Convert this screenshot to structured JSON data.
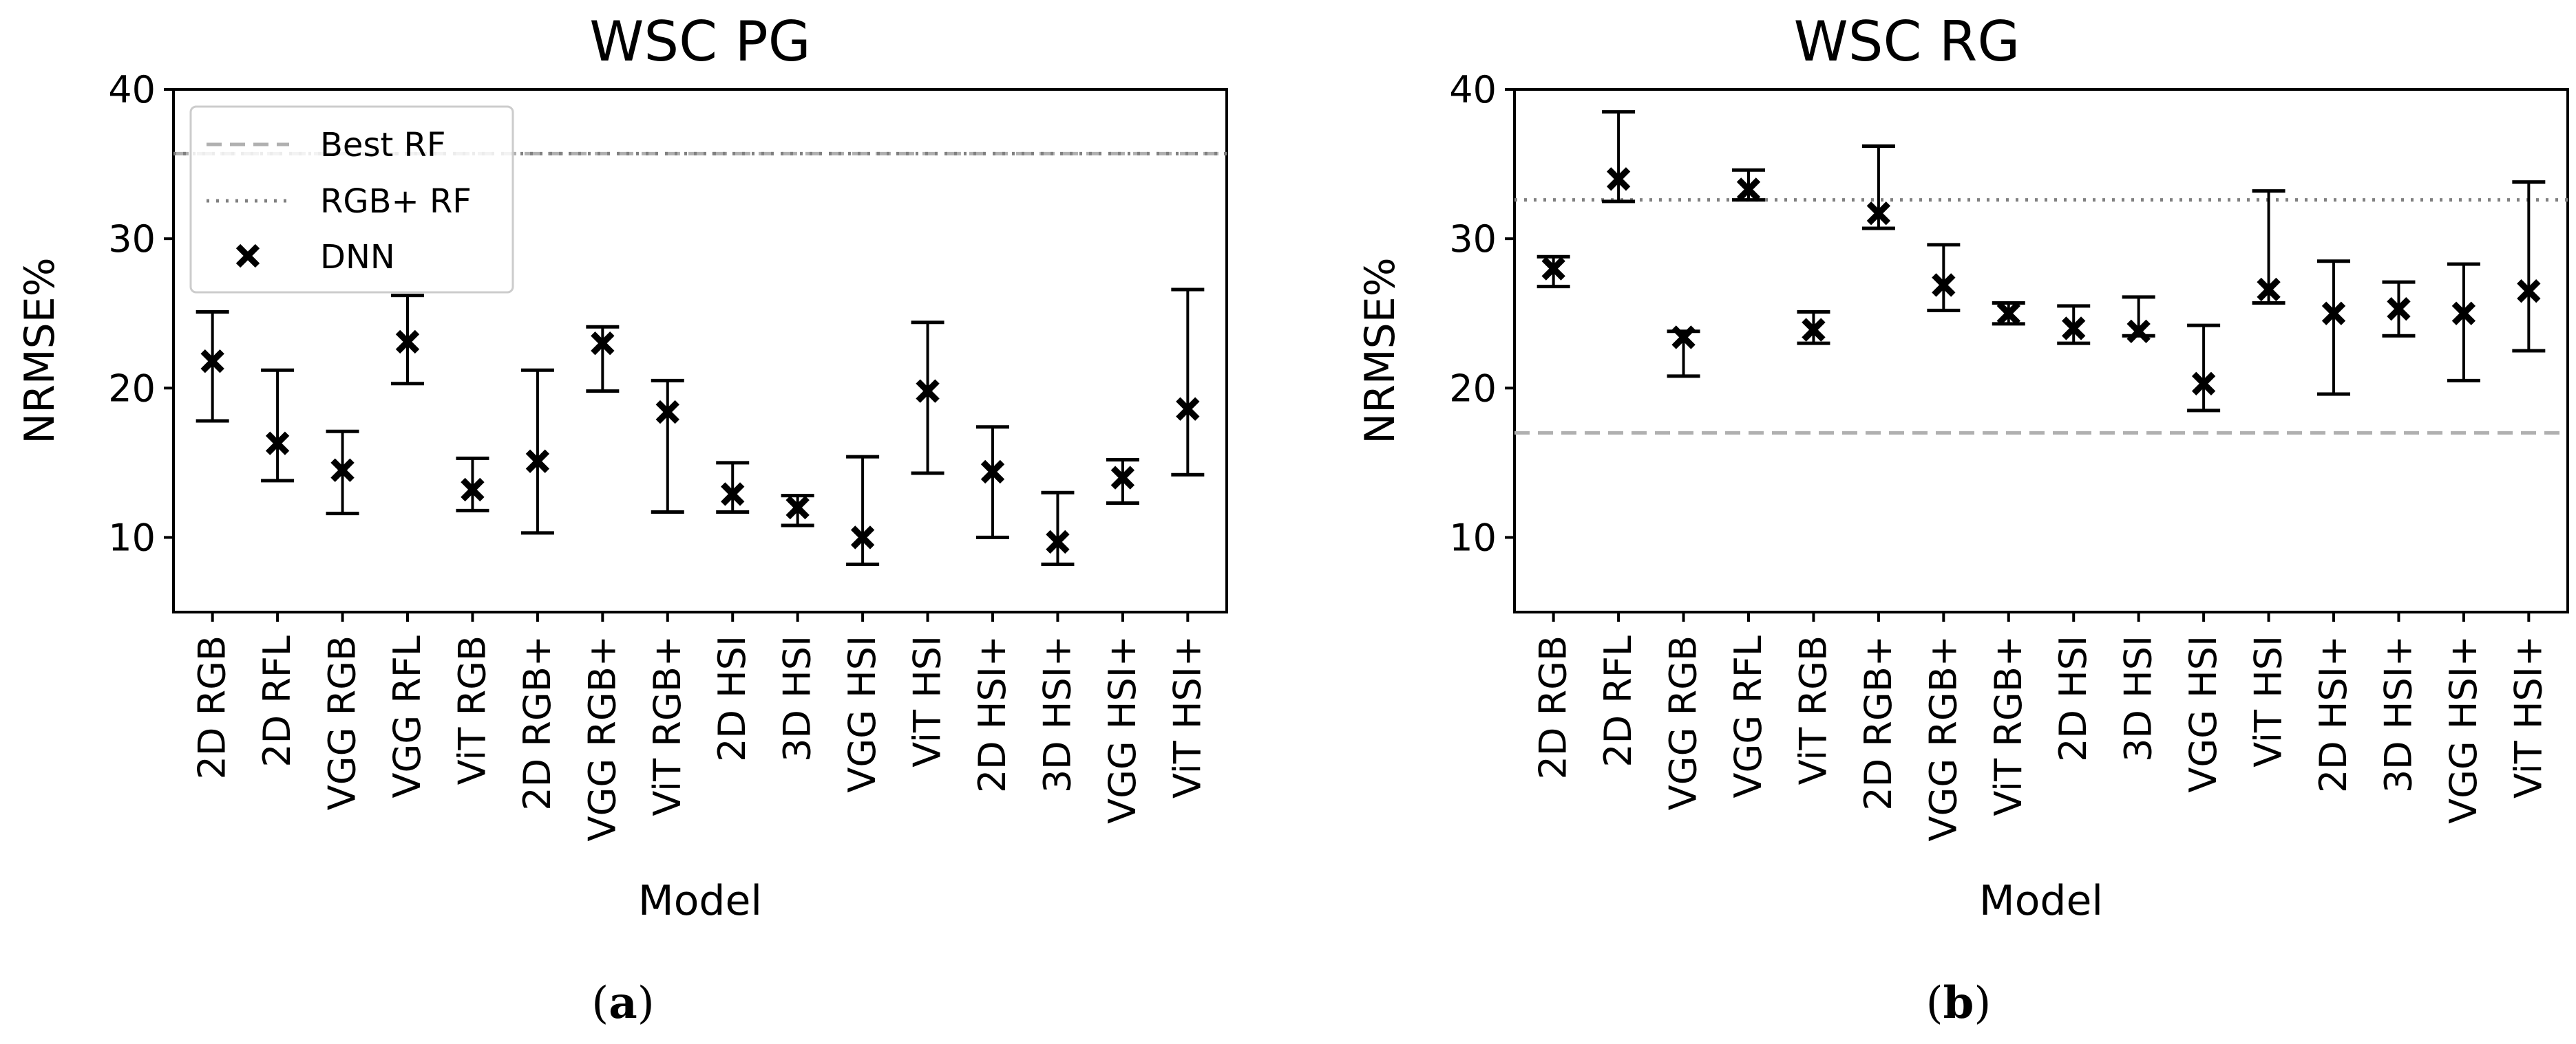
{
  "chart_data": [
    {
      "type": "scatter",
      "panel_label": "a",
      "title": "WSC PG",
      "xlabel": "Model",
      "ylabel": "NRMSE%",
      "ylim": [
        5,
        40
      ],
      "yticks": [
        10,
        20,
        30,
        40
      ],
      "categories": [
        "2D RGB",
        "2D RFL",
        "VGG RGB",
        "VGG RFL",
        "ViT RGB",
        "2D RGB+",
        "VGG RGB+",
        "ViT RGB+",
        "2D HSI",
        "3D HSI",
        "VGG HSI",
        "ViT HSI",
        "2D HSI+",
        "3D HSI+",
        "VGG HSI+",
        "ViT HSI+"
      ],
      "series": [
        {
          "name": "DNN",
          "values": [
            21.8,
            16.3,
            14.5,
            23.1,
            13.2,
            15.1,
            23.0,
            18.4,
            12.9,
            12.0,
            10.0,
            19.8,
            14.4,
            9.7,
            14.0,
            18.6
          ],
          "lower": [
            17.8,
            13.8,
            11.6,
            20.3,
            11.8,
            10.3,
            19.8,
            11.7,
            11.7,
            10.8,
            8.2,
            14.3,
            10.0,
            8.2,
            12.3,
            14.2
          ],
          "upper": [
            25.1,
            21.2,
            17.1,
            26.2,
            15.3,
            21.2,
            24.1,
            20.5,
            15.0,
            12.8,
            15.4,
            24.4,
            17.4,
            13.0,
            15.2,
            26.6
          ]
        }
      ],
      "reference_lines": {
        "best_rf": 35.7,
        "rgb_plus_rf": 35.7
      },
      "legend": {
        "position": "top-left",
        "entries": [
          "Best RF",
          "RGB+ RF",
          "DNN"
        ]
      }
    },
    {
      "type": "scatter",
      "panel_label": "b",
      "title": "WSC RG",
      "xlabel": "Model",
      "ylabel": "NRMSE%",
      "ylim": [
        5,
        40
      ],
      "yticks": [
        10,
        20,
        30,
        40
      ],
      "categories": [
        "2D RGB",
        "2D RFL",
        "VGG RGB",
        "VGG RFL",
        "ViT RGB",
        "2D RGB+",
        "VGG RGB+",
        "ViT RGB+",
        "2D HSI",
        "3D HSI",
        "VGG HSI",
        "ViT HSI",
        "2D HSI+",
        "3D HSI+",
        "VGG HSI+",
        "ViT HSI+"
      ],
      "series": [
        {
          "name": "DNN",
          "values": [
            28.0,
            34.0,
            23.4,
            33.3,
            23.9,
            31.7,
            26.9,
            25.0,
            24.0,
            23.8,
            20.3,
            26.6,
            25.0,
            25.3,
            25.0,
            26.5
          ],
          "lower": [
            26.8,
            32.5,
            20.8,
            32.6,
            23.0,
            30.7,
            25.2,
            24.3,
            23.0,
            23.5,
            18.5,
            25.7,
            19.6,
            23.5,
            20.5,
            22.5
          ],
          "upper": [
            28.8,
            38.5,
            23.8,
            34.6,
            25.1,
            36.2,
            29.6,
            25.7,
            25.5,
            26.1,
            24.2,
            33.2,
            28.5,
            27.1,
            28.3,
            33.8
          ]
        }
      ],
      "reference_lines": {
        "best_rf": 17.0,
        "rgb_plus_rf": 32.6
      }
    }
  ]
}
